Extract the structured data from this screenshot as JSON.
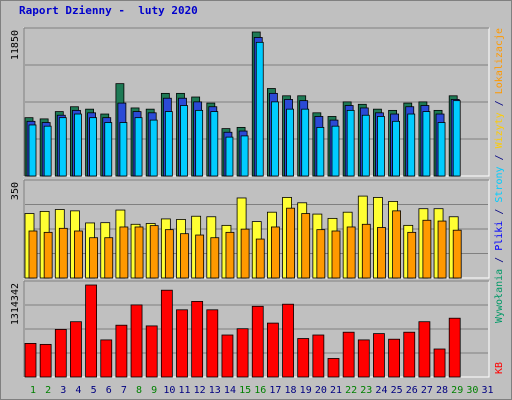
{
  "title": "Raport Dzienny -  luty 2020",
  "colors": {
    "background": "#c0c0c0",
    "panel": "#c0c0c0",
    "grid": "#808080",
    "visits": "#1e7a55",
    "files": "#2b4ad6",
    "pages": "#00ccff",
    "hits_label": "#009966",
    "visits_label": "#ffcc00",
    "sites": "#ffff33",
    "sites_label": "#ff9900",
    "kbytes": "#ff0000",
    "weekend": "#008000",
    "weekday": "#000080"
  },
  "side_labels": {
    "top": [
      {
        "text": "Wywołania",
        "color": "#009966"
      },
      {
        "text": " / ",
        "color": "#000080"
      },
      {
        "text": "Pliki",
        "color": "#0000ff"
      },
      {
        "text": " / ",
        "color": "#000080"
      },
      {
        "text": "Strony",
        "color": "#00ccff"
      },
      {
        "text": " / ",
        "color": "#000080"
      },
      {
        "text": "Wizyty",
        "color": "#ffcc00"
      },
      {
        "text": " / ",
        "color": "#000080"
      },
      {
        "text": "Lokalizacje",
        "color": "#ff9900"
      }
    ],
    "bottom": [
      {
        "text": "KB",
        "color": "#ff0000"
      }
    ]
  },
  "chart_data": {
    "type": "bar",
    "categories": [
      "1",
      "2",
      "3",
      "4",
      "5",
      "6",
      "7",
      "8",
      "9",
      "10",
      "11",
      "12",
      "13",
      "14",
      "15",
      "16",
      "17",
      "18",
      "19",
      "20",
      "21",
      "22",
      "23",
      "24",
      "25",
      "26",
      "27",
      "28",
      "29",
      "30",
      "31"
    ],
    "category_colors": [
      "#008000",
      "#008000",
      "#000080",
      "#000080",
      "#000080",
      "#000080",
      "#000080",
      "#008000",
      "#008000",
      "#000080",
      "#000080",
      "#000080",
      "#000080",
      "#000080",
      "#008000",
      "#008000",
      "#000080",
      "#000080",
      "#000080",
      "#000080",
      "#000080",
      "#008000",
      "#008000",
      "#000080",
      "#000080",
      "#000080",
      "#000080",
      "#000080",
      "#008000",
      "#008000",
      "#000080"
    ],
    "panels": [
      {
        "name": "hits-files-pages",
        "ymax_label": "11850",
        "ymax": 11850,
        "series": [
          {
            "name": "Wywołania",
            "values": [
              4800,
              4700,
              5300,
              5700,
              5500,
              5100,
              7600,
              5600,
              5500,
              6800,
              6800,
              6500,
              6000,
              3900,
              4000,
              12000,
              7200,
              6600,
              6600,
              5200,
              4900,
              6100,
              5900,
              5500,
              5400,
              6000,
              6100,
              5400,
              6600,
              null,
              null
            ]
          },
          {
            "name": "Pliki",
            "values": [
              4500,
              4400,
              5000,
              5400,
              5200,
              4800,
              6000,
              5300,
              5200,
              6400,
              6400,
              6100,
              5700,
              3600,
              3700,
              11400,
              6800,
              6300,
              6200,
              4900,
              4600,
              5800,
              5600,
              5200,
              5100,
              5700,
              5800,
              5100,
              6300,
              null,
              null
            ]
          },
          {
            "name": "Strony",
            "values": [
              4200,
              4100,
              4800,
              5100,
              4800,
              4400,
              4400,
              4800,
              4600,
              5300,
              5800,
              5400,
              5300,
              3200,
              3300,
              11000,
              6100,
              5500,
              5500,
              4000,
              4100,
              5400,
              5000,
              4900,
              4500,
              5100,
              5300,
              4400,
              6200,
              null,
              null
            ]
          }
        ]
      },
      {
        "name": "visits-sites",
        "ymax_label": "350",
        "ymax": 350,
        "series": [
          {
            "name": "Wizyty",
            "values": [
              240,
              248,
              255,
              250,
              205,
              206,
              253,
              200,
              203,
              220,
              218,
              230,
              228,
              196,
              298,
              210,
              245,
              300,
              280,
              238,
              222,
              245,
              305,
              300,
              285,
              196,
              258,
              258,
              228,
              null,
              null
            ]
          },
          {
            "name": "Lokalizacje",
            "values": [
              175,
              170,
              185,
              175,
              150,
              150,
              190,
              190,
              195,
              180,
              165,
              160,
              150,
              170,
              182,
              145,
              190,
              260,
              240,
              180,
              175,
              190,
              200,
              188,
              250,
              170,
              215,
              212,
              178,
              null,
              null
            ]
          }
        ]
      },
      {
        "name": "kbytes",
        "ymax_label": "1314342",
        "ymax": 1314342,
        "series": [
          {
            "name": "KB",
            "values": [
              480000,
              466000,
              680000,
              790000,
              1314342,
              530000,
              740000,
              1030000,
              730000,
              1240000,
              960000,
              1080000,
              960000,
              600000,
              690000,
              1010000,
              770000,
              1040000,
              550000,
              600000,
              265000,
              640000,
              530000,
              620000,
              540000,
              640000,
              790000,
              400000,
              840000,
              null,
              null
            ]
          }
        ]
      }
    ]
  }
}
